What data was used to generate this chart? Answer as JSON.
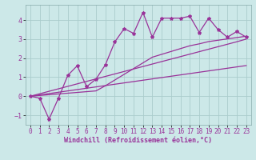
{
  "xlabel": "Windchill (Refroidissement éolien,°C)",
  "x_values": [
    0,
    1,
    2,
    3,
    4,
    5,
    6,
    7,
    8,
    9,
    10,
    11,
    12,
    13,
    14,
    15,
    16,
    17,
    18,
    19,
    20,
    21,
    22,
    23
  ],
  "line1_y": [
    0.0,
    -0.1,
    -1.2,
    -0.1,
    1.1,
    1.6,
    0.5,
    0.9,
    1.65,
    2.85,
    3.55,
    3.3,
    4.4,
    3.1,
    4.1,
    4.1,
    4.1,
    4.2,
    3.35,
    4.1,
    3.5,
    3.1,
    3.4,
    3.1
  ],
  "line2_y": [
    0.0,
    0.13,
    0.26,
    0.39,
    0.52,
    0.65,
    0.78,
    0.91,
    1.04,
    1.17,
    1.3,
    1.43,
    1.56,
    1.69,
    1.82,
    1.95,
    2.08,
    2.21,
    2.34,
    2.47,
    2.6,
    2.73,
    2.86,
    3.0
  ],
  "line3_y": [
    0.0,
    0.07,
    0.14,
    0.21,
    0.28,
    0.35,
    0.42,
    0.49,
    0.56,
    0.63,
    0.7,
    0.77,
    0.84,
    0.91,
    0.98,
    1.05,
    1.12,
    1.19,
    1.26,
    1.33,
    1.4,
    1.47,
    1.54,
    1.61
  ],
  "line4_y": [
    0.0,
    0.04,
    0.08,
    0.12,
    0.16,
    0.2,
    0.24,
    0.28,
    0.55,
    0.85,
    1.15,
    1.45,
    1.75,
    2.05,
    2.2,
    2.35,
    2.5,
    2.65,
    2.75,
    2.87,
    2.94,
    3.01,
    3.08,
    3.15
  ],
  "line_color": "#993399",
  "bg_color": "#cce8e8",
  "grid_color": "#aacccc",
  "ylim": [
    -1.5,
    4.8
  ],
  "xlim": [
    -0.5,
    23.5
  ],
  "yticks": [
    -1,
    0,
    1,
    2,
    3,
    4
  ],
  "xticks": [
    0,
    1,
    2,
    3,
    4,
    5,
    6,
    7,
    8,
    9,
    10,
    11,
    12,
    13,
    14,
    15,
    16,
    17,
    18,
    19,
    20,
    21,
    22,
    23
  ],
  "tick_fontsize": 5.5,
  "xlabel_fontsize": 6.0
}
